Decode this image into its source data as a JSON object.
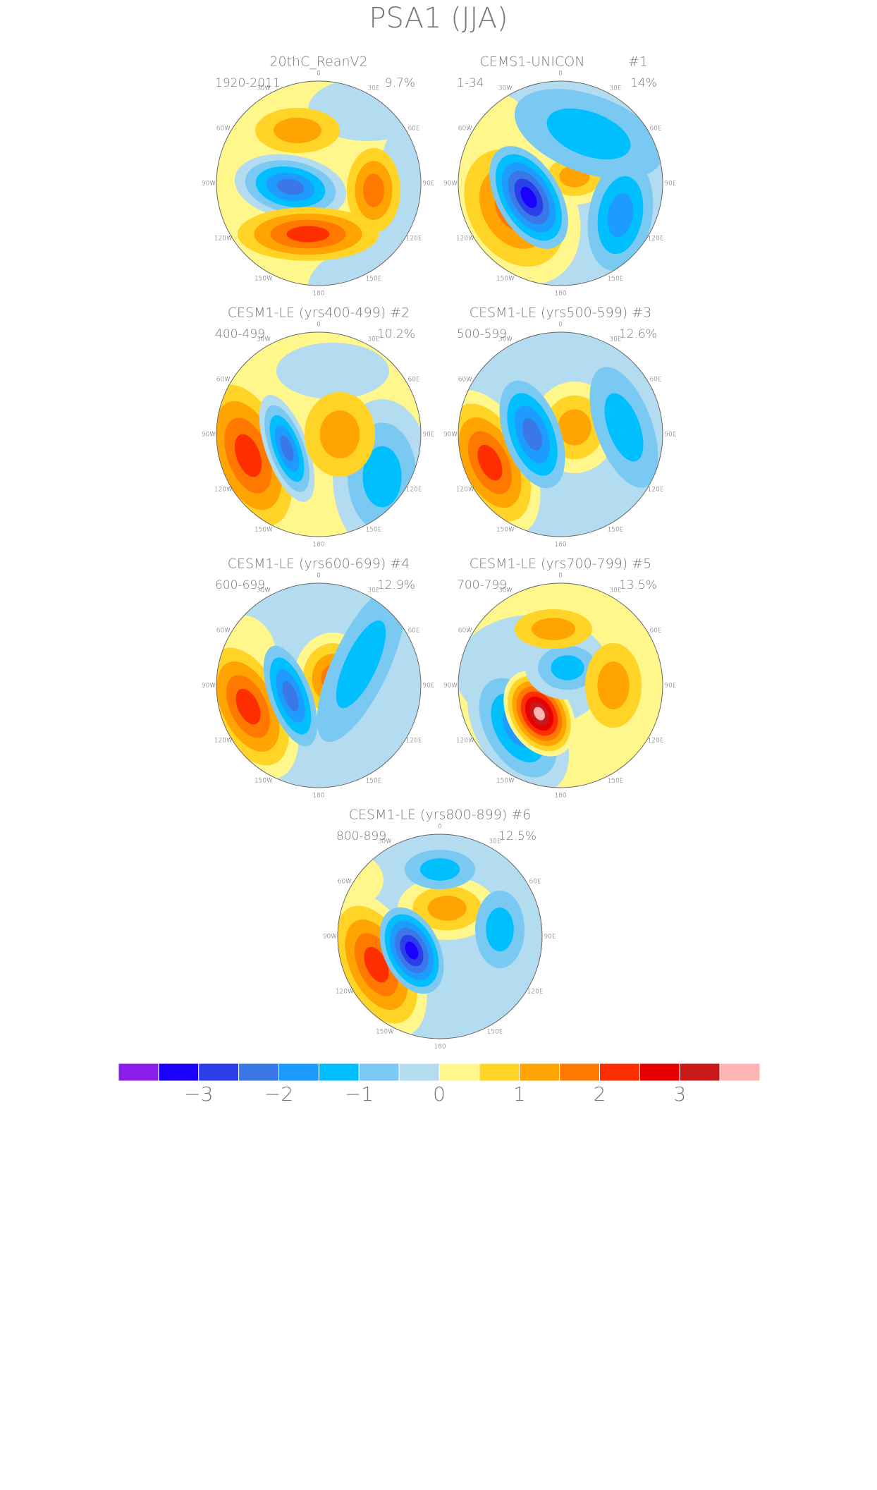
{
  "title": "PSA1 (JJA)",
  "longitude_labels": [
    "0",
    "30E",
    "60E",
    "90E",
    "120E",
    "150E",
    "180",
    "150W",
    "120W",
    "90W",
    "60W",
    "30W"
  ],
  "panels": [
    {
      "title": "20thC_ReanV2",
      "period": "1920-2011",
      "percent": "9.7%"
    },
    {
      "title": "CEMS1-UNICON",
      "tag": "#1",
      "period": "1-34",
      "percent": "14%"
    },
    {
      "title": "CESM1-LE (yrs400-499) #2",
      "period": "400-499",
      "percent": "10.2%"
    },
    {
      "title": "CESM1-LE (yrs500-599) #3",
      "period": "500-599",
      "percent": "12.6%"
    },
    {
      "title": "CESM1-LE (yrs600-699) #4",
      "period": "600-699",
      "percent": "12.9%"
    },
    {
      "title": "CESM1-LE (yrs700-799) #5",
      "period": "700-799",
      "percent": "13.5%"
    },
    {
      "title": "CESM1-LE (yrs800-899) #6",
      "period": "800-899",
      "percent": "12.5%"
    }
  ],
  "colorbar": {
    "colors": [
      "#8a1de8",
      "#1a00ff",
      "#2a3fe8",
      "#3a78e8",
      "#1e9bff",
      "#00bfff",
      "#79c9f2",
      "#b4dcf0",
      "#fff68c",
      "#ffd426",
      "#ffa400",
      "#ff7800",
      "#ff2e00",
      "#e80000",
      "#c81818",
      "#ffb4b4"
    ],
    "labels": [
      "−3",
      "−2",
      "−1",
      "0",
      "1",
      "2",
      "3"
    ]
  }
}
